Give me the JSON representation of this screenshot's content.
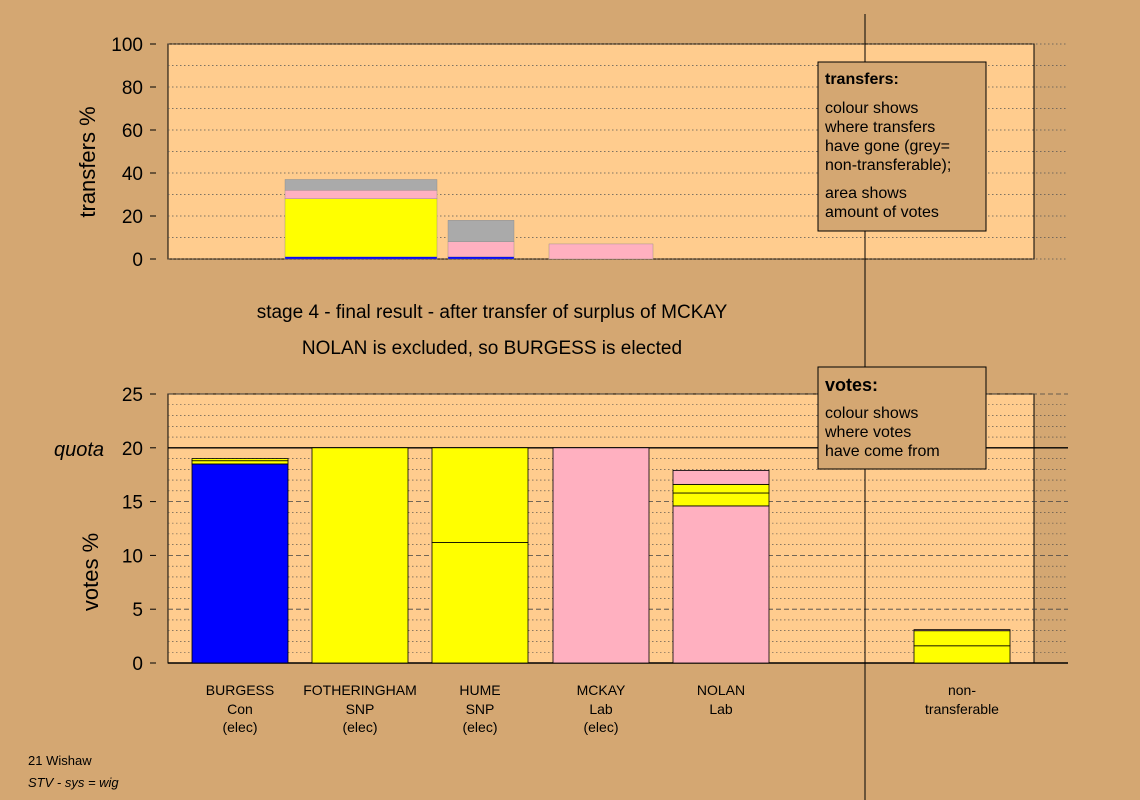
{
  "title_line1": "stage 4 - final result - after transfer of surplus of MCKAY",
  "title_line2": "NOLAN is excluded, so BURGESS is elected",
  "footer_line1": "21 Wishaw",
  "footer_line2": "STV - sys = wig",
  "colors": {
    "background": "#d4a772",
    "plot_bg": "#ffcc8e",
    "Con": "#0000ff",
    "SNP": "#ffff00",
    "Lab": "#ffb0c0",
    "nontransferable": "#aaaaaa"
  },
  "transfers_legend": {
    "heading": "transfers:",
    "line1": "colour shows",
    "line2": "where transfers",
    "line3": "have gone (grey=",
    "line4": "non-transferable);",
    "line5": "area shows",
    "line6": "amount of votes"
  },
  "votes_legend": {
    "heading": "votes:",
    "line1": "colour shows",
    "line2": "where votes",
    "line3": "have come from"
  },
  "chart_data": [
    {
      "type": "bar",
      "ylabel": "transfers %",
      "ylim": [
        0,
        100
      ],
      "yticks": [
        0,
        20,
        40,
        60,
        80,
        100
      ],
      "grid": true,
      "bars": [
        {
          "candidate": "BURGESS",
          "segments": [
            {
              "party": "Con",
              "value": 1
            },
            {
              "party": "SNP",
              "value": 27
            },
            {
              "party": "Lab",
              "value": 4
            },
            {
              "party": "nontransferable",
              "value": 5
            }
          ]
        },
        {
          "candidate": "HUME",
          "segments": [
            {
              "party": "Con",
              "value": 1
            },
            {
              "party": "Lab",
              "value": 7
            },
            {
              "party": "nontransferable",
              "value": 10
            }
          ]
        },
        {
          "candidate": "MCKAY",
          "segments": [
            {
              "party": "Lab",
              "value": 7
            }
          ]
        }
      ]
    },
    {
      "type": "bar",
      "ylabel": "votes %",
      "quota_label": "quota",
      "quota": 20,
      "ylim": [
        0,
        25
      ],
      "yticks": [
        0,
        5,
        10,
        15,
        20,
        25
      ],
      "grid": true,
      "bars": [
        {
          "name": "BURGESS",
          "party": "Con",
          "status": "(elec)",
          "segments": [
            {
              "party": "Con",
              "value": 18.5
            },
            {
              "party": "SNP",
              "value": 0.3
            },
            {
              "party": "SNP",
              "value": 0.2
            }
          ]
        },
        {
          "name": "FOTHERINGHAM",
          "party": "SNP",
          "status": "(elec)",
          "segments": [
            {
              "party": "SNP",
              "value": 20
            }
          ]
        },
        {
          "name": "HUME",
          "party": "SNP",
          "status": "(elec)",
          "segments": [
            {
              "party": "SNP",
              "value": 11.2
            },
            {
              "party": "SNP",
              "value": 8.8
            }
          ]
        },
        {
          "name": "MCKAY",
          "party": "Lab",
          "status": "(elec)",
          "segments": [
            {
              "party": "Lab",
              "value": 20
            }
          ]
        },
        {
          "name": "NOLAN",
          "party": "Lab",
          "status": "",
          "segments": [
            {
              "party": "Lab",
              "value": 14.6
            },
            {
              "party": "SNP",
              "value": 1.2
            },
            {
              "party": "SNP",
              "value": 0.8
            },
            {
              "party": "Lab",
              "value": 1.3
            }
          ]
        }
      ],
      "nontransferable": {
        "line1": "non-",
        "line2": "transferable",
        "segments": [
          {
            "party": "SNP",
            "value": 1.6
          },
          {
            "party": "SNP",
            "value": 1.4
          },
          {
            "party": "Lab",
            "value": 0.1
          }
        ]
      }
    }
  ]
}
